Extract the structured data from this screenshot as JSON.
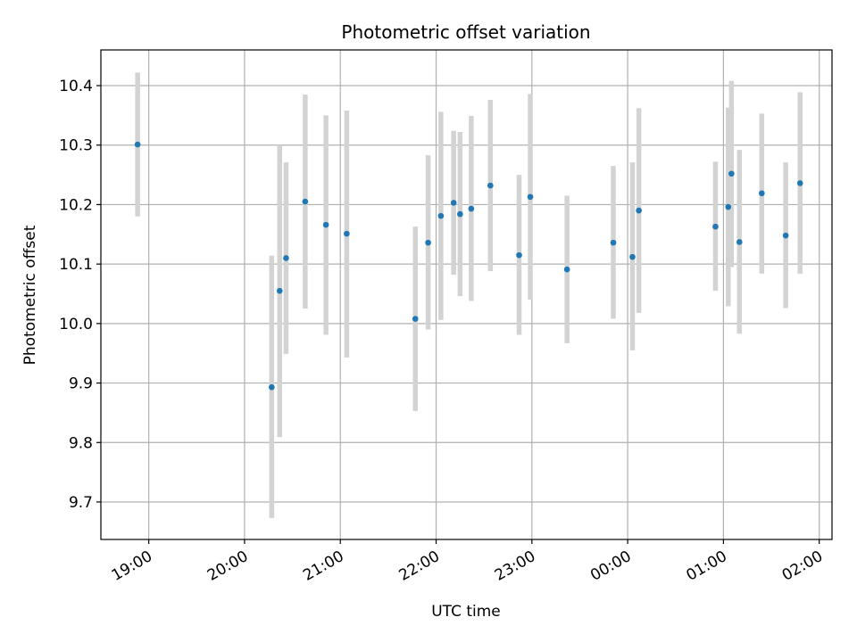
{
  "chart_data": {
    "type": "scatter",
    "title": "Photometric offset variation",
    "xlabel": "UTC time",
    "ylabel": "Photometric offset",
    "x_ticks": [
      "19:00",
      "20:00",
      "21:00",
      "22:00",
      "23:00",
      "00:00",
      "01:00",
      "02:00"
    ],
    "x_tick_hours": [
      19,
      20,
      21,
      22,
      23,
      24,
      25,
      26
    ],
    "xlim": [
      "18:30",
      "02:08"
    ],
    "y_ticks": [
      "9.7",
      "9.8",
      "9.9",
      "10.0",
      "10.1",
      "10.2",
      "10.3",
      "10.4"
    ],
    "y_tick_values": [
      9.7,
      9.8,
      9.9,
      10.0,
      10.1,
      10.2,
      10.3,
      10.4
    ],
    "ylim": [
      9.637,
      10.46
    ],
    "grid": true,
    "colors": {
      "marker": "#1f77b4",
      "errorbar": "#d3d3d3",
      "grid": "#b0b0b0",
      "axes": "#000000"
    },
    "points": [
      {
        "time": "18:53",
        "y": 10.301,
        "ylow": 10.18,
        "yhigh": 10.422
      },
      {
        "time": "20:17",
        "y": 9.893,
        "ylow": 9.673,
        "yhigh": 10.114
      },
      {
        "time": "20:22",
        "y": 10.055,
        "ylow": 9.809,
        "yhigh": 10.3
      },
      {
        "time": "20:26",
        "y": 10.11,
        "ylow": 9.949,
        "yhigh": 10.271
      },
      {
        "time": "20:38",
        "y": 10.205,
        "ylow": 10.025,
        "yhigh": 10.385
      },
      {
        "time": "20:51",
        "y": 10.166,
        "ylow": 9.981,
        "yhigh": 10.35
      },
      {
        "time": "21:04",
        "y": 10.151,
        "ylow": 9.943,
        "yhigh": 10.358
      },
      {
        "time": "21:47",
        "y": 10.008,
        "ylow": 9.853,
        "yhigh": 10.163
      },
      {
        "time": "21:55",
        "y": 10.136,
        "ylow": 9.99,
        "yhigh": 10.283
      },
      {
        "time": "22:03",
        "y": 10.181,
        "ylow": 10.006,
        "yhigh": 10.356
      },
      {
        "time": "22:11",
        "y": 10.203,
        "ylow": 10.082,
        "yhigh": 10.324
      },
      {
        "time": "22:15",
        "y": 10.184,
        "ylow": 10.046,
        "yhigh": 10.322
      },
      {
        "time": "22:22",
        "y": 10.193,
        "ylow": 10.038,
        "yhigh": 10.349
      },
      {
        "time": "22:34",
        "y": 10.232,
        "ylow": 10.088,
        "yhigh": 10.376
      },
      {
        "time": "22:52",
        "y": 10.115,
        "ylow": 9.981,
        "yhigh": 10.25
      },
      {
        "time": "22:59",
        "y": 10.213,
        "ylow": 10.04,
        "yhigh": 10.386
      },
      {
        "time": "23:22",
        "y": 10.091,
        "ylow": 9.967,
        "yhigh": 10.215
      },
      {
        "time": "23:51",
        "y": 10.136,
        "ylow": 10.008,
        "yhigh": 10.265
      },
      {
        "time": "00:03",
        "y": 10.112,
        "ylow": 9.955,
        "yhigh": 10.271
      },
      {
        "time": "00:07",
        "y": 10.19,
        "ylow": 10.018,
        "yhigh": 10.362
      },
      {
        "time": "00:55",
        "y": 10.163,
        "ylow": 10.055,
        "yhigh": 10.272
      },
      {
        "time": "01:03",
        "y": 10.196,
        "ylow": 10.029,
        "yhigh": 10.363
      },
      {
        "time": "01:05",
        "y": 10.252,
        "ylow": 10.095,
        "yhigh": 10.408
      },
      {
        "time": "01:10",
        "y": 10.137,
        "ylow": 9.983,
        "yhigh": 10.292
      },
      {
        "time": "01:24",
        "y": 10.219,
        "ylow": 10.084,
        "yhigh": 10.353
      },
      {
        "time": "01:39",
        "y": 10.148,
        "ylow": 10.026,
        "yhigh": 10.271
      },
      {
        "time": "01:48",
        "y": 10.236,
        "ylow": 10.084,
        "yhigh": 10.389
      }
    ]
  }
}
